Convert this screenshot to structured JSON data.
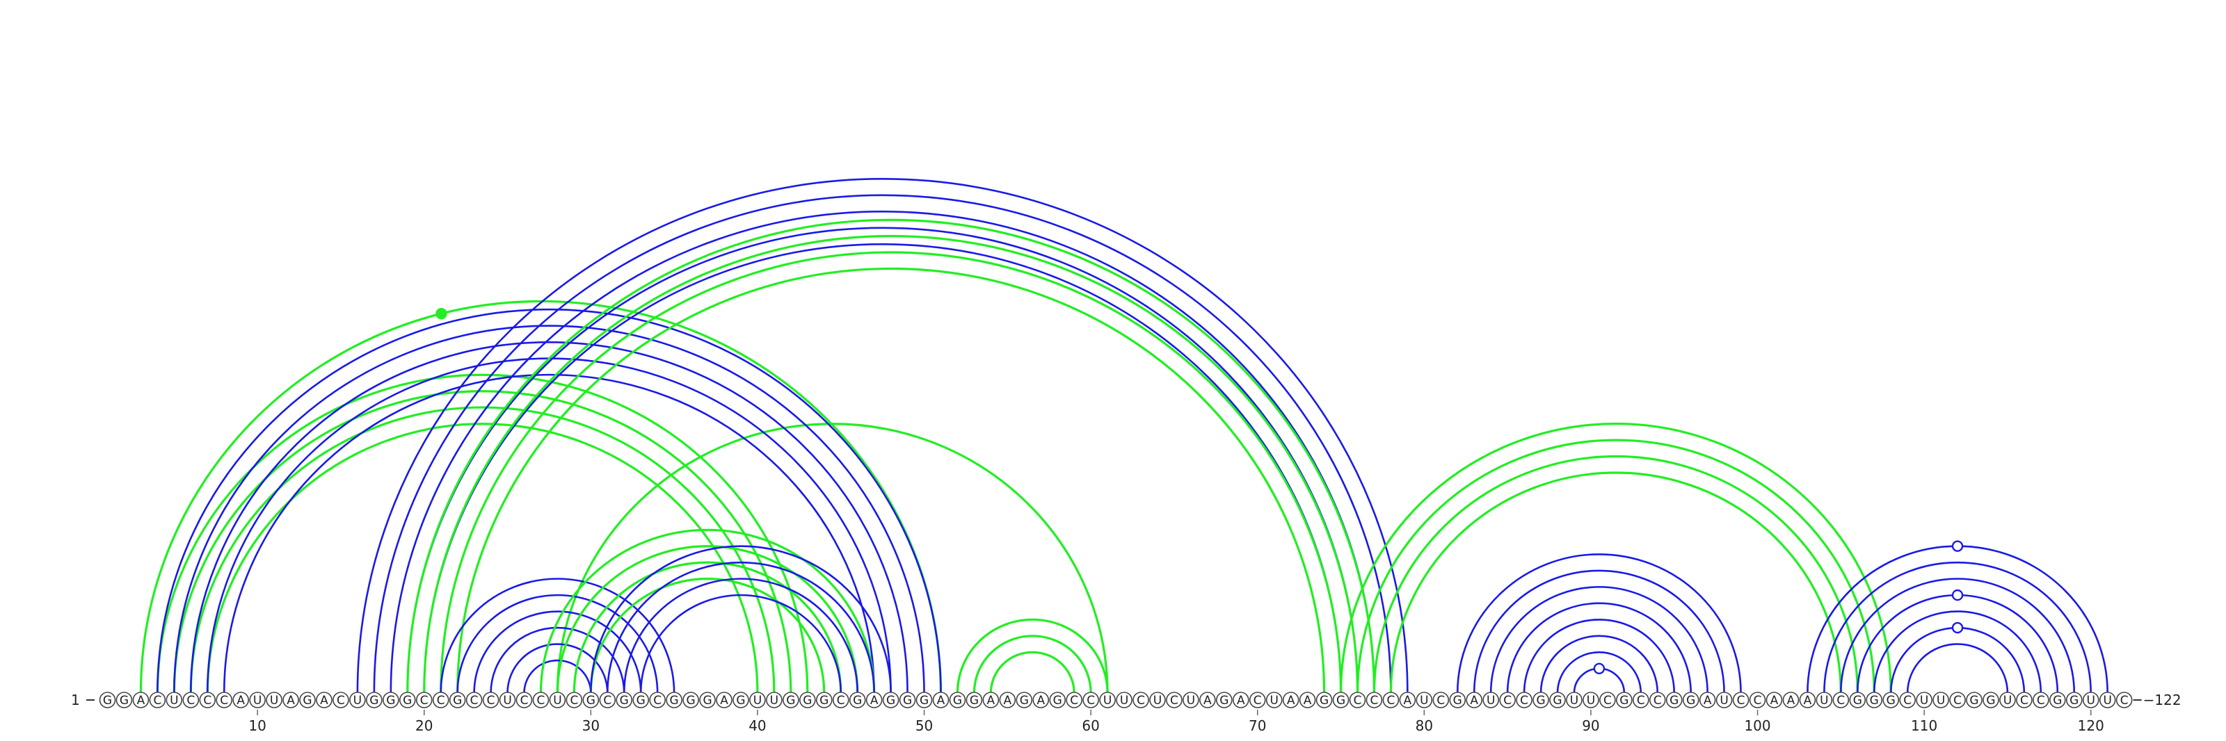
{
  "sequence": "GGACUCCCAUUAGACUGGGCCGCCUCCUCGCGGCGGGAGUUGGGCGAGGGAGGAAGAGCCUUCUCUAGACUAAGGCCCAUCGAUCCGGUUCGCCGGAUCCAAAUCGGGCUUCGGUCCGGUUC",
  "start_label": "1",
  "end_label": "122",
  "ticks": [
    10,
    20,
    30,
    40,
    50,
    60,
    70,
    80,
    90,
    100,
    110,
    120
  ],
  "colors": {
    "blue": "#1a1ae6",
    "green": "#22ee22",
    "base_stroke": "#444444"
  },
  "arc_groups": [
    {
      "color": "green",
      "pairs": [
        [
          3,
          51
        ],
        [
          28,
          61
        ]
      ]
    },
    {
      "color": "green",
      "pairs": [
        [
          4,
          43
        ],
        [
          5,
          42
        ],
        [
          6,
          41
        ],
        [
          7,
          40
        ]
      ]
    },
    {
      "color": "blue",
      "pairs": [
        [
          4,
          51
        ],
        [
          5,
          50
        ],
        [
          6,
          49
        ],
        [
          7,
          48
        ],
        [
          8,
          47
        ]
      ]
    },
    {
      "color": "blue",
      "pairs": [
        [
          16,
          79
        ],
        [
          17,
          78
        ],
        [
          18,
          77
        ],
        [
          19,
          76
        ],
        [
          20,
          75
        ]
      ]
    },
    {
      "color": "green",
      "pairs": [
        [
          19,
          77
        ],
        [
          20,
          76
        ],
        [
          21,
          75
        ],
        [
          22,
          74
        ]
      ]
    },
    {
      "color": "blue",
      "pairs": [
        [
          21,
          35
        ],
        [
          22,
          34
        ],
        [
          23,
          33
        ],
        [
          24,
          32
        ],
        [
          25,
          31
        ],
        [
          26,
          30
        ]
      ]
    },
    {
      "color": "green",
      "pairs": [
        [
          27,
          47
        ],
        [
          28,
          46
        ],
        [
          29,
          45
        ],
        [
          30,
          44
        ]
      ]
    },
    {
      "color": "blue",
      "pairs": [
        [
          30,
          48
        ],
        [
          31,
          47
        ],
        [
          32,
          46
        ],
        [
          33,
          45
        ]
      ]
    },
    {
      "color": "green",
      "pairs": [
        [
          52,
          61
        ],
        [
          53,
          60
        ],
        [
          54,
          59
        ]
      ]
    },
    {
      "color": "green",
      "pairs": [
        [
          75,
          108
        ],
        [
          76,
          107
        ],
        [
          77,
          106
        ],
        [
          78,
          105
        ]
      ]
    },
    {
      "color": "blue",
      "pairs": [
        [
          82,
          99
        ],
        [
          83,
          98
        ],
        [
          84,
          97
        ],
        [
          85,
          96
        ],
        [
          86,
          95
        ],
        [
          87,
          94
        ],
        [
          88,
          93
        ],
        [
          89,
          92
        ]
      ]
    },
    {
      "color": "blue",
      "pairs": [
        [
          103,
          121
        ],
        [
          104,
          120
        ],
        [
          105,
          119
        ],
        [
          106,
          118
        ],
        [
          107,
          117
        ],
        [
          108,
          116
        ],
        [
          109,
          115
        ]
      ]
    }
  ],
  "marker_dots": [
    {
      "color": "green",
      "filled": true,
      "pair": [
        3,
        51
      ]
    },
    {
      "color": "blue",
      "filled": false,
      "pair": [
        89,
        92
      ]
    },
    {
      "color": "blue",
      "filled": false,
      "pair": [
        103,
        121
      ]
    },
    {
      "color": "blue",
      "filled": false,
      "pair": [
        106,
        118
      ]
    },
    {
      "color": "blue",
      "filled": false,
      "pair": [
        108,
        116
      ]
    }
  ]
}
